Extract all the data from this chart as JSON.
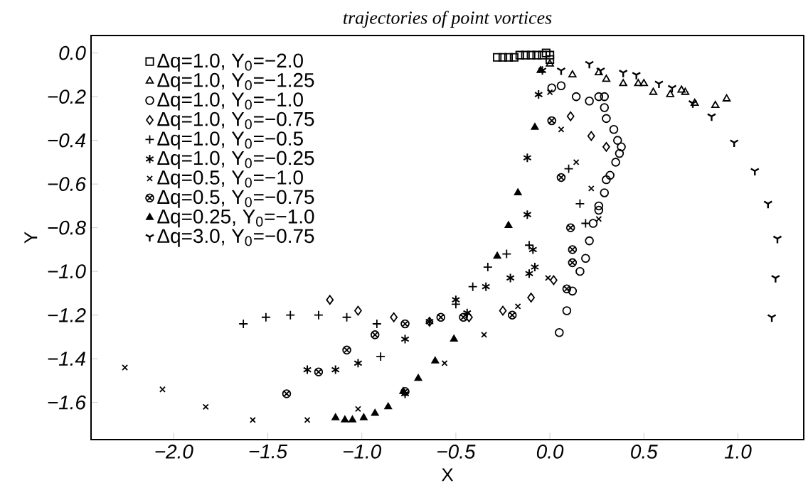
{
  "chart_data": {
    "type": "scatter",
    "title": "trajectories of point vortices",
    "xlabel": "X",
    "ylabel": "Y",
    "xlim": [
      -2.44,
      1.35
    ],
    "ylim": [
      -1.77,
      0.08
    ],
    "xticks": [
      {
        "value": -2.0,
        "label": "−2.0"
      },
      {
        "value": -1.5,
        "label": "−1.5"
      },
      {
        "value": -1.0,
        "label": "−1.0"
      },
      {
        "value": -0.5,
        "label": "−0.5"
      },
      {
        "value": 0.0,
        "label": "0.0"
      },
      {
        "value": 0.5,
        "label": "0.5"
      },
      {
        "value": 1.0,
        "label": "1.0"
      }
    ],
    "yticks": [
      {
        "value": 0.0,
        "label": "0.0"
      },
      {
        "value": -0.2,
        "label": "−0.2"
      },
      {
        "value": -0.4,
        "label": "−0.4"
      },
      {
        "value": -0.6,
        "label": "−0.6"
      },
      {
        "value": -0.8,
        "label": "−0.8"
      },
      {
        "value": -1.0,
        "label": "−1.0"
      },
      {
        "value": -1.2,
        "label": "−1.2"
      },
      {
        "value": -1.4,
        "label": "−1.4"
      },
      {
        "value": -1.6,
        "label": "−1.6"
      }
    ],
    "grid": false,
    "legend": "top left",
    "series": [
      {
        "name": "Δq=1.0,   Y$_{0}$=−2.0",
        "color": "#000000",
        "marker": "square",
        "x": [
          -0.28,
          -0.25,
          -0.22,
          -0.19,
          -0.16,
          -0.13,
          -0.1,
          -0.07,
          -0.04,
          -0.02,
          0.0,
          0.0
        ],
        "values": [
          -0.02,
          -0.02,
          -0.02,
          -0.02,
          -0.01,
          -0.01,
          -0.01,
          -0.01,
          -0.01,
          0.0,
          -0.01,
          -0.03
        ]
      },
      {
        "name": "Δq=1.0,   Y$_{0}$=−1.25",
        "color": "#000000",
        "marker": "triangle",
        "x": [
          0.0,
          0.12,
          0.26,
          0.3,
          0.39,
          0.47,
          0.5,
          0.55,
          0.64,
          0.7,
          0.72,
          0.77,
          0.88,
          0.94
        ],
        "values": [
          -0.05,
          -0.1,
          -0.09,
          -0.12,
          -0.14,
          -0.14,
          -0.14,
          -0.18,
          -0.19,
          -0.17,
          -0.18,
          -0.23,
          -0.24,
          -0.21
        ]
      },
      {
        "name": "Δq=1.0,   Y$_{0}$=−1.0",
        "color": "#000000",
        "marker": "circle",
        "x": [
          0.01,
          0.06,
          0.14,
          0.21,
          0.26,
          0.29,
          0.29,
          0.3,
          0.34,
          0.36,
          0.38,
          0.37,
          0.35,
          0.32,
          0.3,
          0.29,
          0.26,
          0.26,
          0.23,
          0.21,
          0.19,
          0.16,
          0.12,
          0.09,
          0.05
        ],
        "values": [
          -0.16,
          -0.15,
          -0.2,
          -0.22,
          -0.2,
          -0.2,
          -0.25,
          -0.3,
          -0.35,
          -0.4,
          -0.43,
          -0.46,
          -0.5,
          -0.56,
          -0.58,
          -0.64,
          -0.7,
          -0.72,
          -0.78,
          -0.86,
          -0.94,
          -1.0,
          -1.09,
          -1.18,
          -1.28
        ]
      },
      {
        "name": "Δq=1.0,   Y$_{0}$=−0.75",
        "color": "#000000",
        "marker": "diamond",
        "x": [
          0.11,
          0.22,
          0.3,
          0.02,
          -0.1,
          -0.25,
          -0.43,
          -0.64,
          -0.83,
          -1.02,
          -1.17
        ],
        "values": [
          -0.29,
          -0.38,
          -0.43,
          -1.04,
          -1.12,
          -1.18,
          -1.21,
          -1.23,
          -1.21,
          -1.18,
          -1.13
        ]
      },
      {
        "name": "Δq=1.0,   Y$_{0}$=−0.5",
        "color": "#000000",
        "marker": "cross",
        "x": [
          0.1,
          0.16,
          0.19,
          -0.11,
          -0.23,
          -0.33,
          -0.41,
          -0.5,
          -0.92,
          -0.9,
          -1.08,
          -1.23,
          -1.38,
          -1.51,
          -1.63
        ],
        "values": [
          -0.53,
          -0.69,
          -0.78,
          -0.88,
          -0.92,
          -0.98,
          -1.07,
          -1.15,
          -1.24,
          -1.39,
          -1.21,
          -1.2,
          -1.2,
          -1.21,
          -1.24
        ]
      },
      {
        "name": "Δq=1.0,   Y$_{0}$=−0.25",
        "color": "#000000",
        "marker": "cross",
        "x": [
          -0.04,
          -0.06,
          -0.12,
          -0.12,
          -0.09,
          -0.08,
          -0.11,
          -0.21,
          -0.34,
          -0.44,
          -0.5,
          -0.64,
          -0.77,
          -0.77,
          -1.02,
          -1.14,
          -1.29
        ],
        "values": [
          -0.08,
          -0.19,
          -0.48,
          -0.74,
          -0.9,
          -0.98,
          -1.01,
          -1.03,
          -1.07,
          -1.19,
          -1.13,
          -1.23,
          -1.31,
          -1.56,
          -1.42,
          -1.45,
          -1.45
        ]
      },
      {
        "name": "Δq=0.5,   Y$_{0}$=−1.0",
        "color": "#000000",
        "marker": "cross",
        "x": [
          0.0,
          0.06,
          0.14,
          0.22,
          0.26,
          -0.01,
          -0.17,
          -0.35,
          -0.56,
          -1.02,
          -1.29,
          -1.58,
          -1.83,
          -2.06,
          -2.26
        ],
        "values": [
          -0.18,
          -0.35,
          -0.5,
          -0.62,
          -0.76,
          -1.03,
          -1.16,
          -1.29,
          -1.42,
          -1.63,
          -1.68,
          -1.68,
          -1.62,
          -1.54,
          -1.44
        ]
      },
      {
        "name": "Δq=0.5,   Y$_{0}$=−0.75",
        "color": "#000000",
        "marker": "cross",
        "x": [
          0.01,
          0.06,
          0.11,
          0.12,
          0.12,
          0.09,
          -0.2,
          -0.46,
          -0.58,
          -0.77,
          -0.93,
          -1.08,
          -1.23,
          -1.4,
          -0.77
        ],
        "values": [
          -0.31,
          -0.57,
          -0.8,
          -0.9,
          -0.96,
          -1.08,
          -1.2,
          -1.21,
          -1.21,
          -1.24,
          -1.29,
          -1.36,
          -1.46,
          -1.56,
          -1.55
        ]
      },
      {
        "name": "Δq=0.25, Y$_{0}$=−1.0",
        "color": "#000000",
        "marker": "triangle",
        "x": [
          -0.05,
          -0.08,
          -0.12,
          -0.17,
          -0.22,
          -0.28,
          -0.51,
          -0.61,
          -0.7,
          -0.78,
          -0.86,
          -0.93,
          -0.99,
          -1.05,
          -1.09,
          -1.14
        ],
        "values": [
          -0.08,
          -0.34,
          null,
          -0.64,
          -0.79,
          -0.93,
          -1.31,
          -1.41,
          -1.49,
          -1.55,
          -1.62,
          -1.65,
          -1.67,
          -1.68,
          -1.68,
          -1.67
        ]
      },
      {
        "name": "Δq=3.0,   Y$_{0}$=−0.75",
        "color": "#000000",
        "marker": "cross",
        "x": [
          0.06,
          0.21,
          0.27,
          0.39,
          0.46,
          0.58,
          0.65,
          0.76,
          0.86,
          0.98,
          1.09,
          1.16,
          1.21,
          1.2,
          1.18
        ],
        "values": [
          -0.08,
          -0.05,
          -0.08,
          -0.09,
          -0.1,
          -0.14,
          -0.16,
          -0.23,
          -0.29,
          -0.41,
          -0.54,
          -0.69,
          -0.85,
          -1.03,
          -1.21
        ]
      }
    ]
  }
}
